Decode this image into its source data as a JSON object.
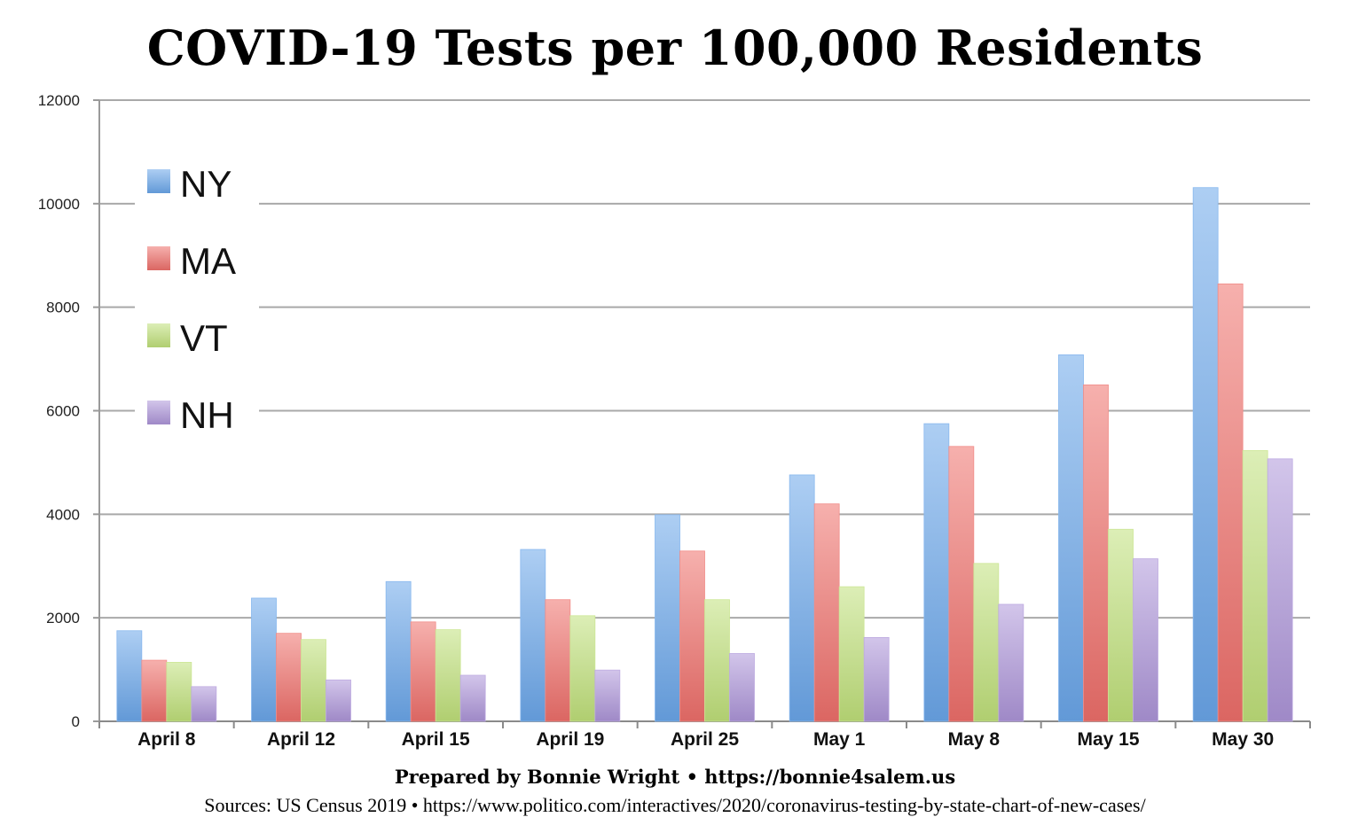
{
  "credits": {
    "prepared": "Prepared by Bonnie Wright • https://bonnie4salem.us",
    "sources": "Sources: US Census 2019 • https://www.politico.com/interactives/2020/coronavirus-testing-by-state-chart-of-new-cases/"
  },
  "chart_data": {
    "type": "bar",
    "title": "COVID-19 Tests per 100,000 Residents",
    "xlabel": "",
    "ylabel": "",
    "ylim": [
      0,
      12000
    ],
    "y_ticks": [
      "0",
      "2000",
      "4000",
      "6000",
      "8000",
      "10000",
      "12000"
    ],
    "grid": true,
    "legend_position": "top-left",
    "categories": [
      "April 8",
      "April 12",
      "April 15",
      "April 19",
      "April 25",
      "May 1",
      "May 8",
      "May 15",
      "May 30"
    ],
    "series": [
      {
        "name": "NY",
        "color": "#6aa6ea",
        "values": [
          1750,
          2380,
          2700,
          3320,
          3990,
          4760,
          5750,
          7080,
          10310
        ]
      },
      {
        "name": "MA",
        "color": "#ee6f6a",
        "values": [
          1180,
          1700,
          1920,
          2350,
          3290,
          4200,
          5310,
          6500,
          8450
        ]
      },
      {
        "name": "VT",
        "color": "#bfe07a",
        "values": [
          1140,
          1580,
          1770,
          2040,
          2350,
          2600,
          3050,
          3710,
          5230
        ]
      },
      {
        "name": "NH",
        "color": "#ad95d8",
        "values": [
          670,
          800,
          890,
          990,
          1310,
          1620,
          2260,
          3140,
          5070
        ]
      }
    ]
  }
}
